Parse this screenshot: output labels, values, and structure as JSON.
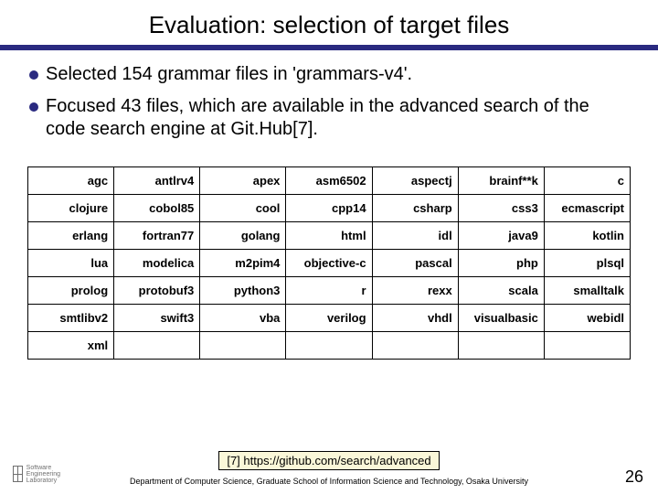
{
  "title": "Evaluation: selection of target files",
  "bullets": [
    "Selected 154 grammar files in 'grammars-v4'.",
    "Focused 43 files, which are available in the advanced search of the code search engine at Git.Hub[7]."
  ],
  "table": {
    "border_color": "#000000",
    "cell_bg": "#ffffff",
    "font_size": 13,
    "font_weight": "bold",
    "text_align": "right",
    "cols": 7,
    "rows": [
      [
        "agc",
        "antlrv4",
        "apex",
        "asm6502",
        "aspectj",
        "brainf**k",
        "c"
      ],
      [
        "clojure",
        "cobol85",
        "cool",
        "cpp14",
        "csharp",
        "css3",
        "ecmascript"
      ],
      [
        "erlang",
        "fortran77",
        "golang",
        "html",
        "idl",
        "java9",
        "kotlin"
      ],
      [
        "lua",
        "modelica",
        "m2pim4",
        "objective-c",
        "pascal",
        "php",
        "plsql"
      ],
      [
        "prolog",
        "protobuf3",
        "python3",
        "r",
        "rexx",
        "scala",
        "smalltalk"
      ],
      [
        "smtlibv2",
        "swift3",
        "vba",
        "verilog",
        "vhdl",
        "visualbasic",
        "webidl"
      ],
      [
        "xml",
        "",
        "",
        "",
        "",
        "",
        ""
      ]
    ]
  },
  "reference": "[7] https://github.com/search/advanced",
  "department": "Department of Computer Science, Graduate School of Information Science and Technology, Osaka University",
  "page_number": "26",
  "logo_text": "Software\nEngineering\nLaboratory",
  "colors": {
    "accent": "#2a2a80",
    "ref_bg": "#faf7d8",
    "text": "#000000",
    "bg": "#ffffff"
  }
}
